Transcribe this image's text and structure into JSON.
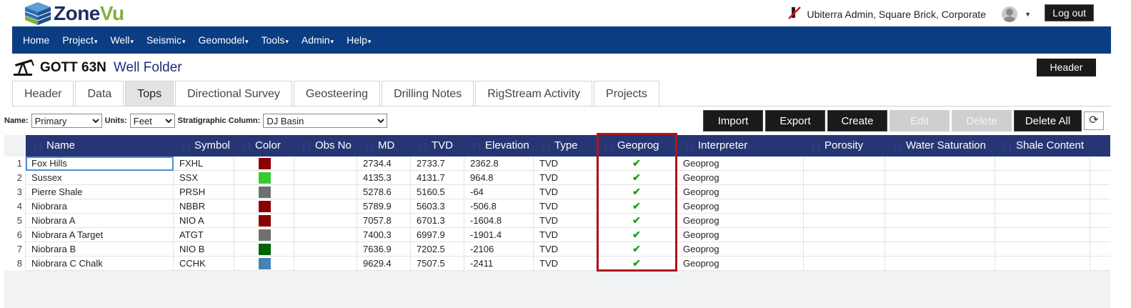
{
  "app": {
    "logo_text_zone": "Zone",
    "logo_text_vu": "Vu"
  },
  "user": {
    "name": "Ubiterra Admin, Square Brick, Corporate",
    "logout_label": "Log out"
  },
  "nav": {
    "items": [
      {
        "label": "Home",
        "dropdown": false
      },
      {
        "label": "Project",
        "dropdown": true
      },
      {
        "label": "Well",
        "dropdown": true
      },
      {
        "label": "Seismic",
        "dropdown": true
      },
      {
        "label": "Geomodel",
        "dropdown": true
      },
      {
        "label": "Tools",
        "dropdown": true
      },
      {
        "label": "Admin",
        "dropdown": true
      },
      {
        "label": "Help",
        "dropdown": true
      }
    ]
  },
  "well": {
    "name": "GOTT 63N",
    "folder_label": "Well Folder",
    "header_button": "Header"
  },
  "tabs": [
    {
      "label": "Header",
      "active": false
    },
    {
      "label": "Data",
      "active": false
    },
    {
      "label": "Tops",
      "active": true
    },
    {
      "label": "Directional Survey",
      "active": false
    },
    {
      "label": "Geosteering",
      "active": false
    },
    {
      "label": "Drilling Notes",
      "active": false
    },
    {
      "label": "RigStream Activity",
      "active": false
    },
    {
      "label": "Projects",
      "active": false
    }
  ],
  "filter": {
    "name_label": "Name:",
    "name_value": "Primary",
    "units_label": "Units:",
    "units_value": "Feet",
    "strat_label": "Stratigraphic Column:",
    "strat_value": "DJ Basin"
  },
  "actions": {
    "import": "Import",
    "export": "Export",
    "create": "Create",
    "edit": "Edit",
    "delete": "Delete",
    "delete_all": "Delete All"
  },
  "grid": {
    "columns": [
      "Name",
      "Symbol",
      "Color",
      "Obs No",
      "MD",
      "TVD",
      "Elevation",
      "Type",
      "Geoprog",
      "Interpreter",
      "Porosity",
      "Water Saturation",
      "Shale Content"
    ],
    "rows": [
      {
        "n": "1",
        "name": "Fox Hills",
        "symbol": "FXHL",
        "color": "#8b0000",
        "obs": "",
        "md": "2734.4",
        "tvd": "2733.7",
        "elev": "2362.8",
        "type": "TVD",
        "geoprog": "✔",
        "interp": "Geoprog"
      },
      {
        "n": "2",
        "name": "Sussex",
        "symbol": "SSX",
        "color": "#33cc33",
        "obs": "",
        "md": "4135.3",
        "tvd": "4131.7",
        "elev": "964.8",
        "type": "TVD",
        "geoprog": "✔",
        "interp": "Geoprog"
      },
      {
        "n": "3",
        "name": "Pierre Shale",
        "symbol": "PRSH",
        "color": "#707070",
        "obs": "",
        "md": "5278.6",
        "tvd": "5160.5",
        "elev": "-64",
        "type": "TVD",
        "geoprog": "✔",
        "interp": "Geoprog"
      },
      {
        "n": "4",
        "name": "Niobrara",
        "symbol": "NBBR",
        "color": "#8b0000",
        "obs": "",
        "md": "5789.9",
        "tvd": "5603.3",
        "elev": "-506.8",
        "type": "TVD",
        "geoprog": "✔",
        "interp": "Geoprog"
      },
      {
        "n": "5",
        "name": "Niobrara A",
        "symbol": "NIO A",
        "color": "#8b0000",
        "obs": "",
        "md": "7057.8",
        "tvd": "6701.3",
        "elev": "-1604.8",
        "type": "TVD",
        "geoprog": "✔",
        "interp": "Geoprog"
      },
      {
        "n": "6",
        "name": "Niobrara A Target",
        "symbol": "ATGT",
        "color": "#707070",
        "obs": "",
        "md": "7400.3",
        "tvd": "6997.9",
        "elev": "-1901.4",
        "type": "TVD",
        "geoprog": "✔",
        "interp": "Geoprog"
      },
      {
        "n": "7",
        "name": "Niobrara B",
        "symbol": "NIO B",
        "color": "#006400",
        "obs": "",
        "md": "7636.9",
        "tvd": "7202.5",
        "elev": "-2106",
        "type": "TVD",
        "geoprog": "✔",
        "interp": "Geoprog"
      },
      {
        "n": "8",
        "name": "Niobrara C Chalk",
        "symbol": "CCHK",
        "color": "#4682b4",
        "obs": "",
        "md": "9629.4",
        "tvd": "7507.5",
        "elev": "-2411",
        "type": "TVD",
        "geoprog": "✔",
        "interp": "Geoprog"
      }
    ]
  },
  "colors": {
    "nav_bg": "#0b3d83",
    "grid_header_bg": "#263675",
    "highlight": "#b0141b",
    "check": "#1aa31a"
  }
}
